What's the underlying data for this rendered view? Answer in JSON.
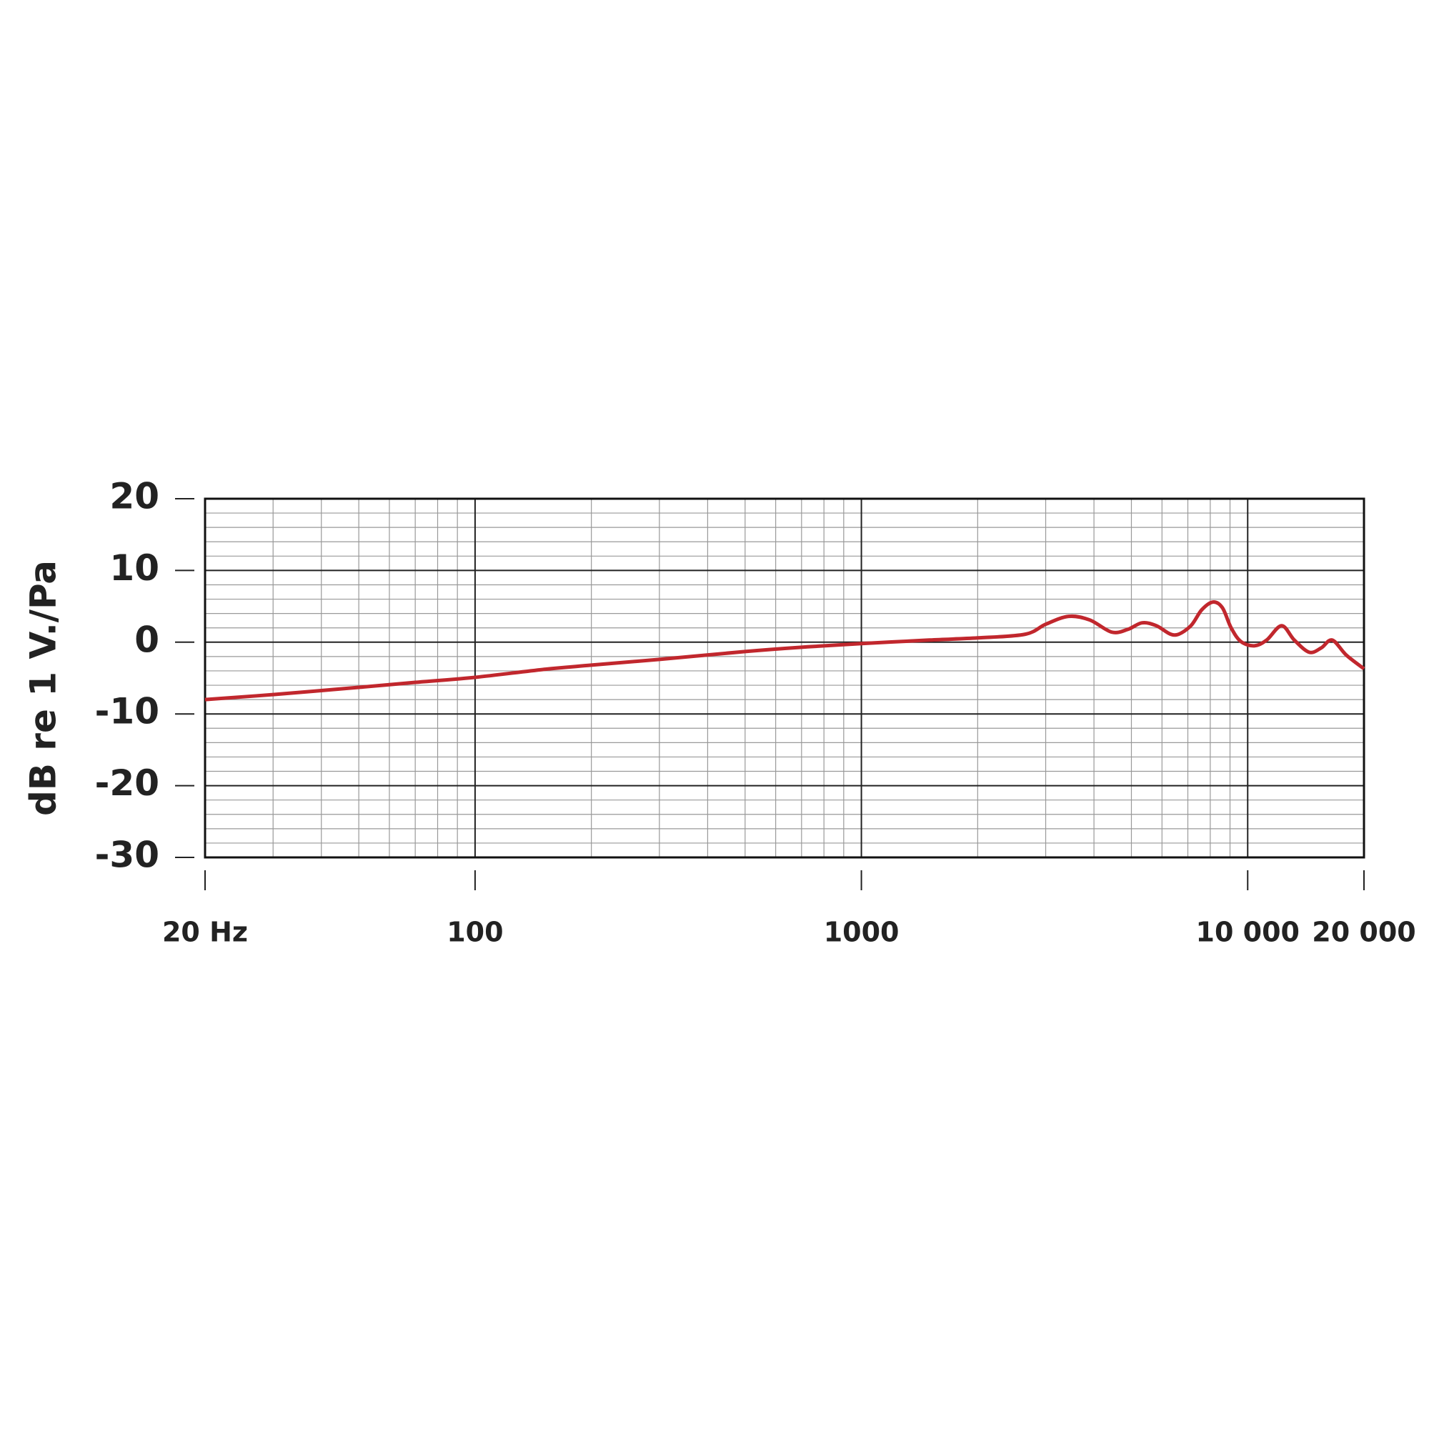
{
  "chart_data": {
    "type": "line",
    "y_label": "dB re 1 V./Pa",
    "x_scale": "log",
    "xlim": [
      20,
      20000
    ],
    "xticks": [
      {
        "value": 20,
        "label": "20 Hz"
      },
      100,
      1000,
      {
        "value": 10000,
        "label": "10 000"
      },
      {
        "value": 20000,
        "label": "20 000"
      }
    ],
    "ylim": [
      -30,
      20
    ],
    "yticks": [
      20,
      10,
      0,
      -10,
      -20,
      -30
    ],
    "grid": true,
    "minor_grid": true,
    "x": [
      20,
      30,
      50,
      70,
      100,
      150,
      200,
      300,
      500,
      700,
      1000,
      1500,
      2000,
      2650,
      3000,
      3440,
      3900,
      4450,
      4900,
      5330,
      5800,
      6450,
      7100,
      7600,
      8130,
      8600,
      9060,
      9600,
      10400,
      11200,
      12240,
      13200,
      14430,
      15500,
      16550,
      18000,
      20000
    ],
    "series": [
      {
        "color": "#c1272d",
        "values": [
          -8,
          -7.3,
          -6.3,
          -5.6,
          -4.9,
          -3.8,
          -3.2,
          -2.4,
          -1.3,
          -0.7,
          -0.2,
          0.3,
          0.6,
          1.1,
          2.5,
          3.6,
          3.1,
          1.4,
          1.8,
          2.7,
          2.3,
          1.0,
          2.2,
          4.5,
          5.6,
          4.8,
          2.0,
          0.1,
          -0.5,
          0.3,
          2.3,
          0.3,
          -1.4,
          -0.8,
          0.3,
          -1.8,
          -3.7
        ]
      }
    ]
  }
}
